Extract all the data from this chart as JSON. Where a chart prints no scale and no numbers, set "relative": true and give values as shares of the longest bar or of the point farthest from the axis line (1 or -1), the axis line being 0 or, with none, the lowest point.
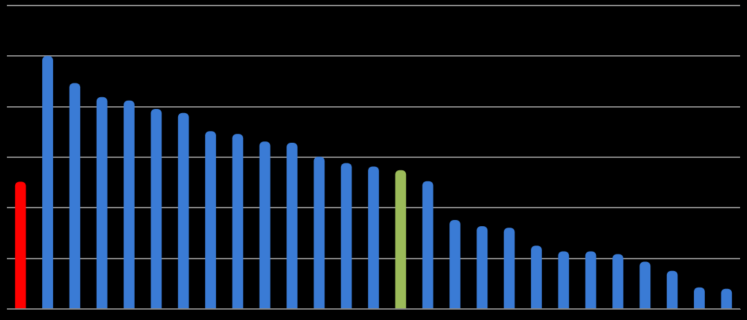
{
  "chart_data": {
    "type": "bar",
    "relative": true,
    "grid": "y",
    "legend": false,
    "categories": [
      null,
      null,
      null,
      null,
      null,
      null,
      null,
      null,
      null,
      null,
      null,
      null,
      null,
      null,
      null,
      null,
      null,
      null,
      null,
      null,
      null,
      null,
      null,
      null,
      null,
      null,
      null
    ],
    "values": [
      0.503,
      1,
      0.893,
      0.838,
      0.824,
      0.791,
      0.775,
      0.703,
      0.692,
      0.662,
      0.657,
      0.602,
      0.577,
      0.563,
      0.549,
      0.505,
      0.352,
      0.327,
      0.321,
      0.25,
      0.228,
      0.228,
      0.217,
      0.187,
      0.151,
      0.085,
      0.08
    ],
    "colors": [
      "#ff0000",
      "#3a7bd5",
      "#3a7bd5",
      "#3a7bd5",
      "#3a7bd5",
      "#3a7bd5",
      "#3a7bd5",
      "#3a7bd5",
      "#3a7bd5",
      "#3a7bd5",
      "#3a7bd5",
      "#3a7bd5",
      "#3a7bd5",
      "#3a7bd5",
      "#9bbb59",
      "#3a7bd5",
      "#3a7bd5",
      "#3a7bd5",
      "#3a7bd5",
      "#3a7bd5",
      "#3a7bd5",
      "#3a7bd5",
      "#3a7bd5",
      "#3a7bd5",
      "#3a7bd5",
      "#3a7bd5",
      "#3a7bd5"
    ]
  }
}
